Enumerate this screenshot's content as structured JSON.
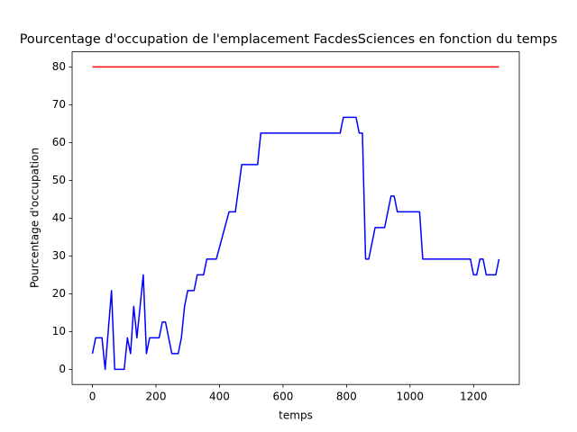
{
  "chart_data": {
    "type": "line",
    "title": "Pourcentage d'occupation de l'emplacement FacdesSciences en fonction du temps",
    "xlabel": "temps",
    "ylabel": "Pourcentage d'occupation",
    "xlim": [
      -64,
      1344
    ],
    "ylim": [
      -4,
      84
    ],
    "xticks": [
      0,
      200,
      400,
      600,
      800,
      1000,
      1200
    ],
    "yticks": [
      0,
      10,
      20,
      30,
      40,
      50,
      60,
      70,
      80
    ],
    "grid": false,
    "series": [
      {
        "color": "#ff0000",
        "x": [
          0,
          1280
        ],
        "values": [
          80,
          80
        ]
      },
      {
        "color": "#0000ff",
        "x": [
          0,
          10,
          30,
          40,
          60,
          70,
          100,
          110,
          120,
          130,
          140,
          160,
          170,
          180,
          210,
          220,
          230,
          250,
          270,
          280,
          290,
          300,
          320,
          330,
          350,
          360,
          390,
          430,
          450,
          470,
          520,
          530,
          780,
          790,
          830,
          840,
          850,
          860,
          870,
          890,
          920,
          940,
          950,
          960,
          1030,
          1040,
          1190,
          1200,
          1210,
          1220,
          1230,
          1240,
          1270,
          1280
        ],
        "values": [
          4.17,
          8.33,
          8.33,
          0,
          20.83,
          0,
          0,
          8.33,
          4.17,
          16.67,
          8.33,
          25,
          4.17,
          8.33,
          8.33,
          12.5,
          12.5,
          4.17,
          4.17,
          8.33,
          16.67,
          20.83,
          20.83,
          25,
          25,
          29.17,
          29.17,
          41.67,
          41.67,
          54.17,
          54.17,
          62.5,
          62.5,
          66.67,
          66.67,
          62.5,
          62.5,
          29.17,
          29.17,
          37.5,
          37.5,
          45.83,
          45.83,
          41.67,
          41.67,
          29.17,
          29.17,
          25,
          25,
          29.17,
          29.17,
          25,
          25,
          29.17
        ]
      }
    ]
  }
}
